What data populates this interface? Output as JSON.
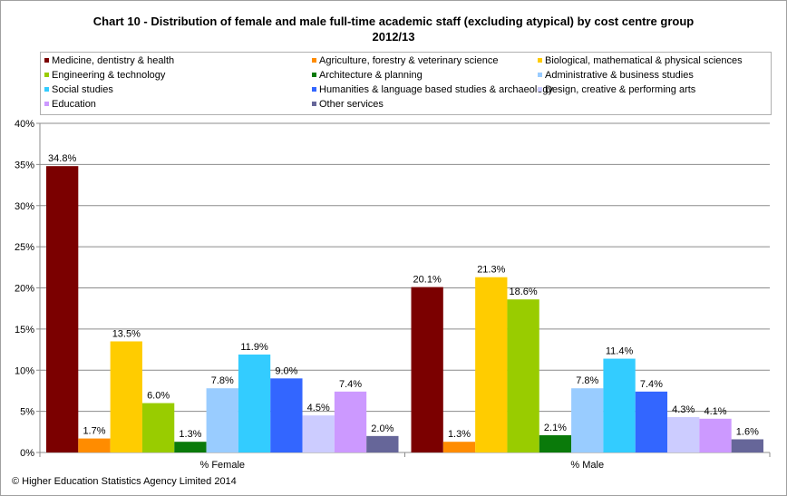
{
  "title_line1": "Chart 10 - Distribution  of female and male full-time academic staff (excluding atypical) by cost  centre group",
  "title_line2": "2012/13",
  "footer": "© Higher Education Statistics Agency Limited 2014",
  "chart_data": {
    "type": "bar",
    "categories": [
      "% Female",
      "% Male"
    ],
    "ylim": [
      0,
      40
    ],
    "yticks": [
      "0%",
      "5%",
      "10%",
      "15%",
      "20%",
      "25%",
      "30%",
      "35%",
      "40%"
    ],
    "grid": true,
    "legend_position": "top",
    "series": [
      {
        "name": "Medicine, dentistry & health",
        "color": "#7b0000",
        "values": [
          34.8,
          20.1
        ],
        "labels": [
          "34.8%",
          "20.1%"
        ]
      },
      {
        "name": "Agriculture, forestry & veterinary science",
        "color": "#ff8c00",
        "values": [
          1.7,
          1.3
        ],
        "labels": [
          "1.7%",
          "1.3%"
        ]
      },
      {
        "name": "Biological, mathematical & physical sciences",
        "color": "#ffcc00",
        "values": [
          13.5,
          21.3
        ],
        "labels": [
          "13.5%",
          "21.3%"
        ]
      },
      {
        "name": "Engineering & technology",
        "color": "#99cc00",
        "values": [
          6.0,
          18.6
        ],
        "labels": [
          "6.0%",
          "18.6%"
        ]
      },
      {
        "name": "Architecture & planning",
        "color": "#0a7a0a",
        "values": [
          1.3,
          2.1
        ],
        "labels": [
          "1.3%",
          "2.1%"
        ]
      },
      {
        "name": "Administrative & business studies",
        "color": "#99ccff",
        "values": [
          7.8,
          7.8
        ],
        "labels": [
          "7.8%",
          "7.8%"
        ]
      },
      {
        "name": "Social studies",
        "color": "#33ccff",
        "values": [
          11.9,
          11.4
        ],
        "labels": [
          "11.9%",
          "11.4%"
        ]
      },
      {
        "name": "Humanities & language based studies & archaeology",
        "color": "#3366ff",
        "values": [
          9.0,
          7.4
        ],
        "labels": [
          "9.0%",
          "7.4%"
        ]
      },
      {
        "name": "Design, creative & performing arts",
        "color": "#ccccff",
        "values": [
          4.5,
          4.3
        ],
        "labels": [
          "4.5%",
          "4.3%"
        ]
      },
      {
        "name": "Education",
        "color": "#cc99ff",
        "values": [
          7.4,
          4.1
        ],
        "labels": [
          "7.4%",
          "4.1%"
        ]
      },
      {
        "name": "Other services",
        "color": "#666699",
        "values": [
          2.0,
          1.6
        ],
        "labels": [
          "2.0%",
          "1.6%"
        ]
      }
    ]
  }
}
